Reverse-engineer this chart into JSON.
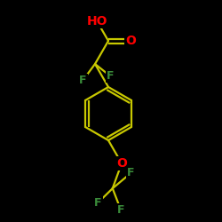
{
  "bg_color": "#000000",
  "bond_color": "#c8c800",
  "atom_colors": {
    "O": "#ff0000",
    "F": "#3a8c3a",
    "C": "#c8c800"
  },
  "bond_lw": 1.6,
  "font_size_hetero": 10,
  "font_size_F": 9
}
